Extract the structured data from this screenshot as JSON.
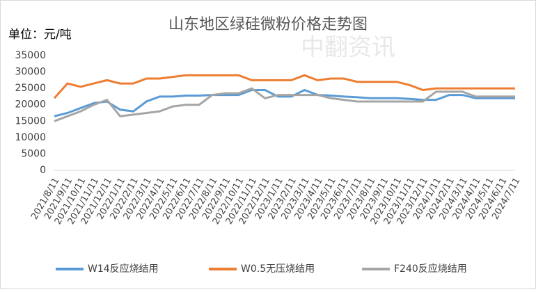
{
  "chart_data": {
    "type": "line",
    "title": "山东地区绿硅微粉价格走势图",
    "unit_label": "单位：元/吨",
    "watermark": "中翻资讯",
    "categories": [
      "2021/8/11",
      "2021/9/11",
      "2021/10/11",
      "2021/11/11",
      "2021/12/11",
      "2022/1/11",
      "2022/2/11",
      "2022/3/11",
      "2022/4/11",
      "2022/5/11",
      "2022/6/11",
      "2022/7/11",
      "2022/8/11",
      "2022/9/11",
      "2022/10/11",
      "2022/11/11",
      "2022/12/11",
      "2023/1/11",
      "2023/2/11",
      "2023/3/11",
      "2023/4/11",
      "2023/5/11",
      "2023/6/11",
      "2023/7/11",
      "2023/8/11",
      "2023/9/11",
      "2023/10/11",
      "2023/11/11",
      "2023/12/11",
      "2024/1/11",
      "2024/2/11",
      "2024/3/11",
      "2024/4/11",
      "2024/5/11",
      "2024/6/11",
      "2024/7/11"
    ],
    "series": [
      {
        "name": "W14反应烧结用",
        "color": "#5b9bd5",
        "values": [
          16500,
          17500,
          19000,
          20500,
          21000,
          18500,
          18000,
          21000,
          22500,
          22500,
          22800,
          22800,
          23000,
          23000,
          23000,
          24500,
          24500,
          22500,
          22500,
          24500,
          23000,
          22800,
          22500,
          22300,
          22000,
          22000,
          22000,
          21800,
          21500,
          21500,
          23000,
          23000,
          22000,
          22000,
          22000,
          22000
        ]
      },
      {
        "name": "W0.5无压烧结用",
        "color": "#ed7d31",
        "values": [
          22000,
          26500,
          25500,
          26500,
          27500,
          26500,
          26500,
          28000,
          28000,
          28500,
          29000,
          29000,
          29000,
          29000,
          29000,
          27500,
          27500,
          27500,
          27500,
          29000,
          27500,
          28000,
          28000,
          27000,
          27000,
          27000,
          27000,
          26000,
          24500,
          25000,
          25000,
          25000,
          25000,
          25000,
          25000,
          25000
        ]
      },
      {
        "name": "F240反应烧结用",
        "color": "#a5a5a5",
        "values": [
          15000,
          16500,
          18000,
          20000,
          21500,
          16500,
          17000,
          17500,
          18000,
          19500,
          20000,
          20000,
          23000,
          23500,
          23500,
          25000,
          22000,
          23000,
          23000,
          23000,
          23000,
          22000,
          21500,
          21000,
          21000,
          21000,
          21000,
          21000,
          21000,
          24000,
          24000,
          24000,
          22500,
          22500,
          22500,
          22500
        ]
      }
    ],
    "ylim": [
      0,
      35000
    ],
    "yticks": [
      0,
      5000,
      10000,
      15000,
      20000,
      25000,
      30000,
      35000
    ]
  }
}
